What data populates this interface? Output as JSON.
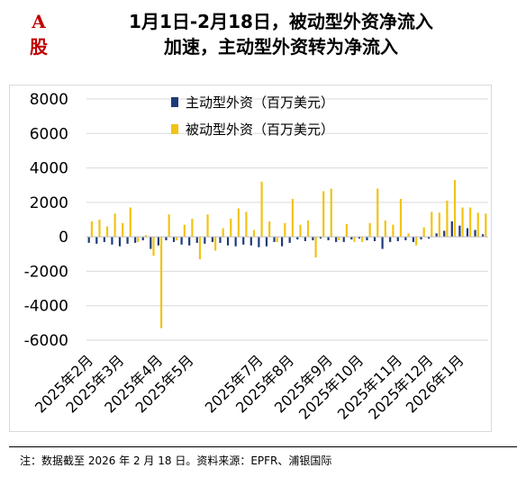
{
  "header": {
    "tag": "A股",
    "title_line1": "1月1日-2月18日，被动型外资净流入",
    "title_line2": "加速，主动型外资转为净流入"
  },
  "footer": {
    "note": "注：数据截至 2026 年 2 月 18 日。资料来源：EPFR、浦银国际"
  },
  "colors": {
    "active": "#1f3a7a",
    "passive": "#f2c314",
    "grid": "#d9d9d9"
  },
  "chart_data": {
    "type": "bar",
    "ylim": [
      -6000,
      8000
    ],
    "yticks": [
      8000,
      6000,
      4000,
      2000,
      0,
      -2000,
      -4000,
      -6000
    ],
    "legend_position": "top",
    "x_ticks": [
      {
        "label": "2025年2月",
        "index": 0
      },
      {
        "label": "2025年3月",
        "index": 4
      },
      {
        "label": "2025年4月",
        "index": 9
      },
      {
        "label": "2025年5月",
        "index": 13
      },
      {
        "label": "2025年7月",
        "index": 22
      },
      {
        "label": "2025年8月",
        "index": 26
      },
      {
        "label": "2025年9月",
        "index": 31
      },
      {
        "label": "2025年10月",
        "index": 35
      },
      {
        "label": "2025年11月",
        "index": 40
      },
      {
        "label": "2025年12月",
        "index": 44
      },
      {
        "label": "2026年1月",
        "index": 48
      }
    ],
    "series": [
      {
        "name": "主动型外资（百万美元）",
        "values": [
          -350,
          -400,
          -300,
          -450,
          -550,
          -400,
          -350,
          -200,
          -700,
          -500,
          -200,
          -300,
          -450,
          -500,
          -350,
          -400,
          -300,
          -350,
          -500,
          -550,
          -450,
          -500,
          -600,
          -550,
          -300,
          -550,
          -350,
          -150,
          -250,
          -200,
          -100,
          -200,
          -300,
          -300,
          -150,
          -100,
          -200,
          -250,
          -700,
          -300,
          -250,
          -200,
          -300,
          -150,
          -100,
          200,
          350,
          900,
          650,
          500,
          400,
          150
        ],
        "color_key": "active"
      },
      {
        "name": "被动型外资（百万美元）",
        "values": [
          900,
          1000,
          600,
          1350,
          800,
          1700,
          -300,
          100,
          -1100,
          -5300,
          1300,
          -200,
          700,
          1050,
          -1300,
          1300,
          -800,
          500,
          1050,
          1650,
          1450,
          400,
          3200,
          900,
          -300,
          800,
          2200,
          700,
          950,
          -1200,
          2650,
          2800,
          -200,
          750,
          -300,
          -300,
          800,
          2800,
          950,
          700,
          2200,
          200,
          -500,
          550,
          1450,
          1400,
          2100,
          3300,
          1700,
          1700,
          1400,
          1350
        ]
      }
    ]
  }
}
